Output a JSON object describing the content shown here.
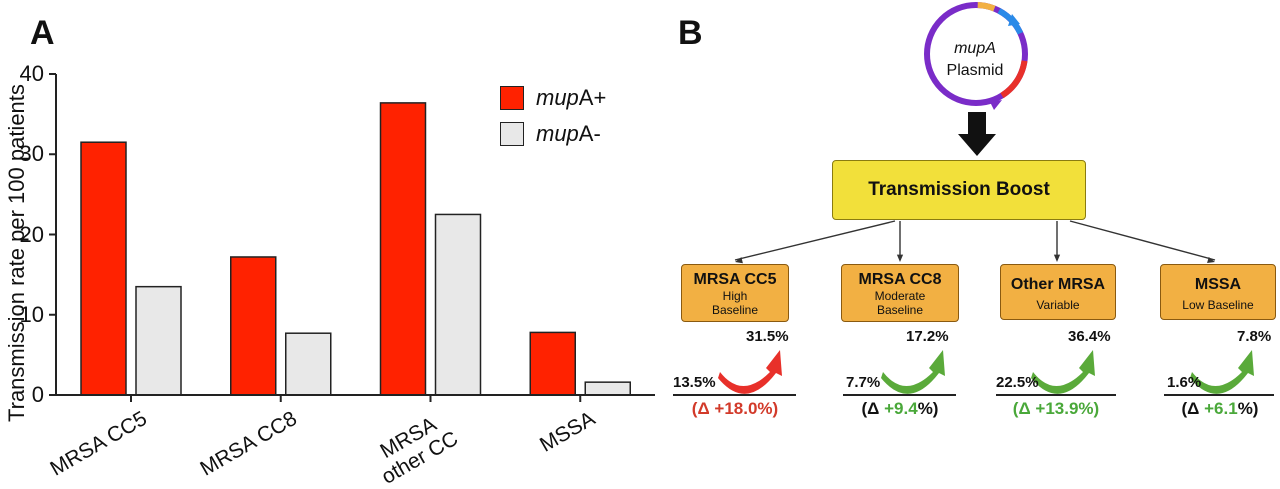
{
  "panel_a": {
    "letter": "A"
  },
  "panel_b": {
    "letter": "B"
  },
  "chart_data": {
    "type": "bar",
    "ylabel": "Transmission rate per 100 patients",
    "xlabel": "",
    "ylim": [
      0,
      40
    ],
    "yticks": [
      0,
      10,
      20,
      30,
      40
    ],
    "categories": [
      "MRSA CC5",
      "MRSA CC8",
      "MRSA other CC",
      "MSSA"
    ],
    "category_lines": [
      [
        "MRSA CC5"
      ],
      [
        "MRSA CC8"
      ],
      [
        "MRSA",
        "other CC"
      ],
      [
        "MSSA"
      ]
    ],
    "series": [
      {
        "name": "mupA+",
        "values": [
          31.5,
          17.2,
          36.4,
          7.8
        ],
        "color": "#ff2200"
      },
      {
        "name": "mupA-",
        "values": [
          13.5,
          7.7,
          22.5,
          1.6
        ],
        "color": "#e8e8e8"
      }
    ],
    "legend": {
      "placement": "top-right",
      "items": [
        {
          "italic": "mup",
          "rest": "A+"
        },
        {
          "italic": "mup",
          "rest": "A-"
        }
      ]
    },
    "grid": false
  },
  "diagram": {
    "plasmid": {
      "line1": "mupA",
      "line2": "Plasmid"
    },
    "boost_label": "Transmission Boost",
    "groups": [
      {
        "title": "MRSA CC5",
        "sub1": "High",
        "sub2": "Baseline",
        "before": "13.5%",
        "after": "31.5%",
        "delta_prefix": "(Δ ",
        "delta_value": "+18.0%",
        "delta_suffix": ")",
        "arrow_color": "#e8302a",
        "delta_color": "#d23a2a",
        "prefix_color": "#d23a2a"
      },
      {
        "title": "MRSA CC8",
        "sub1": "Moderate",
        "sub2": "Baseline",
        "before": "7.7%",
        "after": "17.2%",
        "delta_prefix": "(Δ ",
        "delta_value": "+9.4",
        "delta_suffix": "%)",
        "arrow_color": "#5aaa3a",
        "delta_color": "#4aa83a",
        "prefix_color": "#111111"
      },
      {
        "title": "Other MRSA",
        "sub1": "Variable",
        "sub2": "",
        "before": "22.5%",
        "after": "36.4%",
        "delta_prefix": "(Δ ",
        "delta_value": "+13.9%",
        "delta_suffix": ")",
        "arrow_color": "#5aaa3a",
        "delta_color": "#4aa83a",
        "prefix_color": "#4aa83a"
      },
      {
        "title": "MSSA",
        "sub1": "Low Baseline",
        "sub2": "",
        "before": "1.6%",
        "after": "7.8%",
        "delta_prefix": "(Δ ",
        "delta_value": "+6.1",
        "delta_suffix": "%)",
        "arrow_color": "#5aaa3a",
        "delta_color": "#4aa83a",
        "prefix_color": "#111111"
      }
    ]
  }
}
